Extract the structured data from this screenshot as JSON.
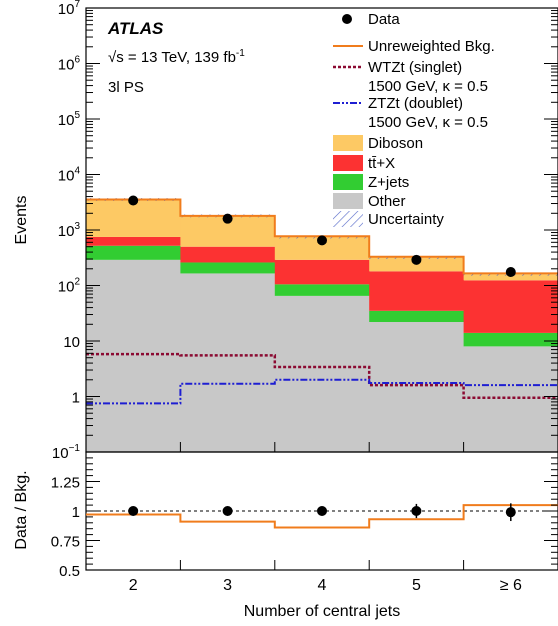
{
  "experiment": "ATLAS",
  "energy_label": "√s = 13 TeV, 139 fb",
  "energy_sup": "-1",
  "region_label": "3l PS",
  "legend": [
    {
      "key": "data",
      "label": "Data"
    },
    {
      "key": "unrw",
      "label": "Unreweighted Bkg."
    },
    {
      "key": "wtzt",
      "label": "WTZt (singlet)"
    },
    {
      "key": "wtzt_sub",
      "label": "1500 GeV, κ = 0.5"
    },
    {
      "key": "ztzt",
      "label": "ZTZt (doublet)"
    },
    {
      "key": "ztzt_sub",
      "label": "1500 GeV, κ = 0.5"
    },
    {
      "key": "diboson",
      "label": "Diboson"
    },
    {
      "key": "ttx",
      "label": "tt̄+X"
    },
    {
      "key": "zjets",
      "label": "Z+jets"
    },
    {
      "key": "other",
      "label": "Other"
    },
    {
      "key": "unc",
      "label": "Uncertainty"
    }
  ],
  "colors": {
    "diboson": "#fdc964",
    "ttx": "#fc3232",
    "zjets": "#32cd32",
    "other": "#c8c8c8",
    "unrw": "#f07c1c",
    "wtzt": "#8b0a32",
    "ztzt": "#1e1ed2",
    "unc": "#5064c8"
  },
  "chart_data": {
    "type": "bar",
    "categories": [
      "2",
      "3",
      "4",
      "5",
      "≥ 6"
    ],
    "xlabel": "Number of central jets",
    "ylabel": "Events",
    "ratio_ylabel": "Data / Bkg.",
    "ylim": [
      0.1,
      10000000
    ],
    "yscale": "log",
    "y_ticks": [
      {
        "main": "10",
        "sup": "−1",
        "v": 0.1
      },
      {
        "main": "1",
        "sup": "",
        "v": 1
      },
      {
        "main": "10",
        "sup": "",
        "v": 10
      },
      {
        "main": "10",
        "sup": "2",
        "v": 100
      },
      {
        "main": "10",
        "sup": "3",
        "v": 1000
      },
      {
        "main": "10",
        "sup": "4",
        "v": 10000
      },
      {
        "main": "10",
        "sup": "5",
        "v": 100000
      },
      {
        "main": "10",
        "sup": "6",
        "v": 1000000
      },
      {
        "main": "10",
        "sup": "7",
        "v": 10000000
      }
    ],
    "stack": [
      {
        "name": "Other",
        "key": "other",
        "values": [
          290,
          165,
          65,
          22,
          8
        ]
      },
      {
        "name": "Z+jets",
        "key": "zjets",
        "values": [
          230,
          95,
          40,
          13,
          6
        ]
      },
      {
        "name": "tt̄+X",
        "key": "ttx",
        "values": [
          230,
          240,
          185,
          145,
          110
        ]
      },
      {
        "name": "Diboson",
        "key": "diboson",
        "values": [
          2800,
          1300,
          460,
          140,
          36
        ]
      }
    ],
    "data": [
      3400,
      1600,
      650,
      290,
      175
    ],
    "data_err": [
      58,
      40,
      25,
      17,
      13
    ],
    "unreweighted_bkg": [
      3550,
      1800,
      770,
      330,
      165
    ],
    "wtzt_singlet": [
      5.8,
      5.5,
      3.4,
      1.6,
      0.95
    ],
    "ztzt_doublet": [
      0.75,
      1.7,
      2.0,
      1.75,
      1.6
    ],
    "ratio": {
      "ylim": [
        0.5,
        1.5
      ],
      "y_ticks": [
        "0.5",
        "0.75",
        "1",
        "1.25"
      ],
      "data": [
        1.0,
        1.0,
        1.0,
        1.0,
        0.99
      ],
      "data_err": [
        0.02,
        0.025,
        0.035,
        0.06,
        0.075
      ],
      "unreweighted": [
        0.97,
        0.91,
        0.86,
        0.93,
        1.05
      ]
    }
  }
}
